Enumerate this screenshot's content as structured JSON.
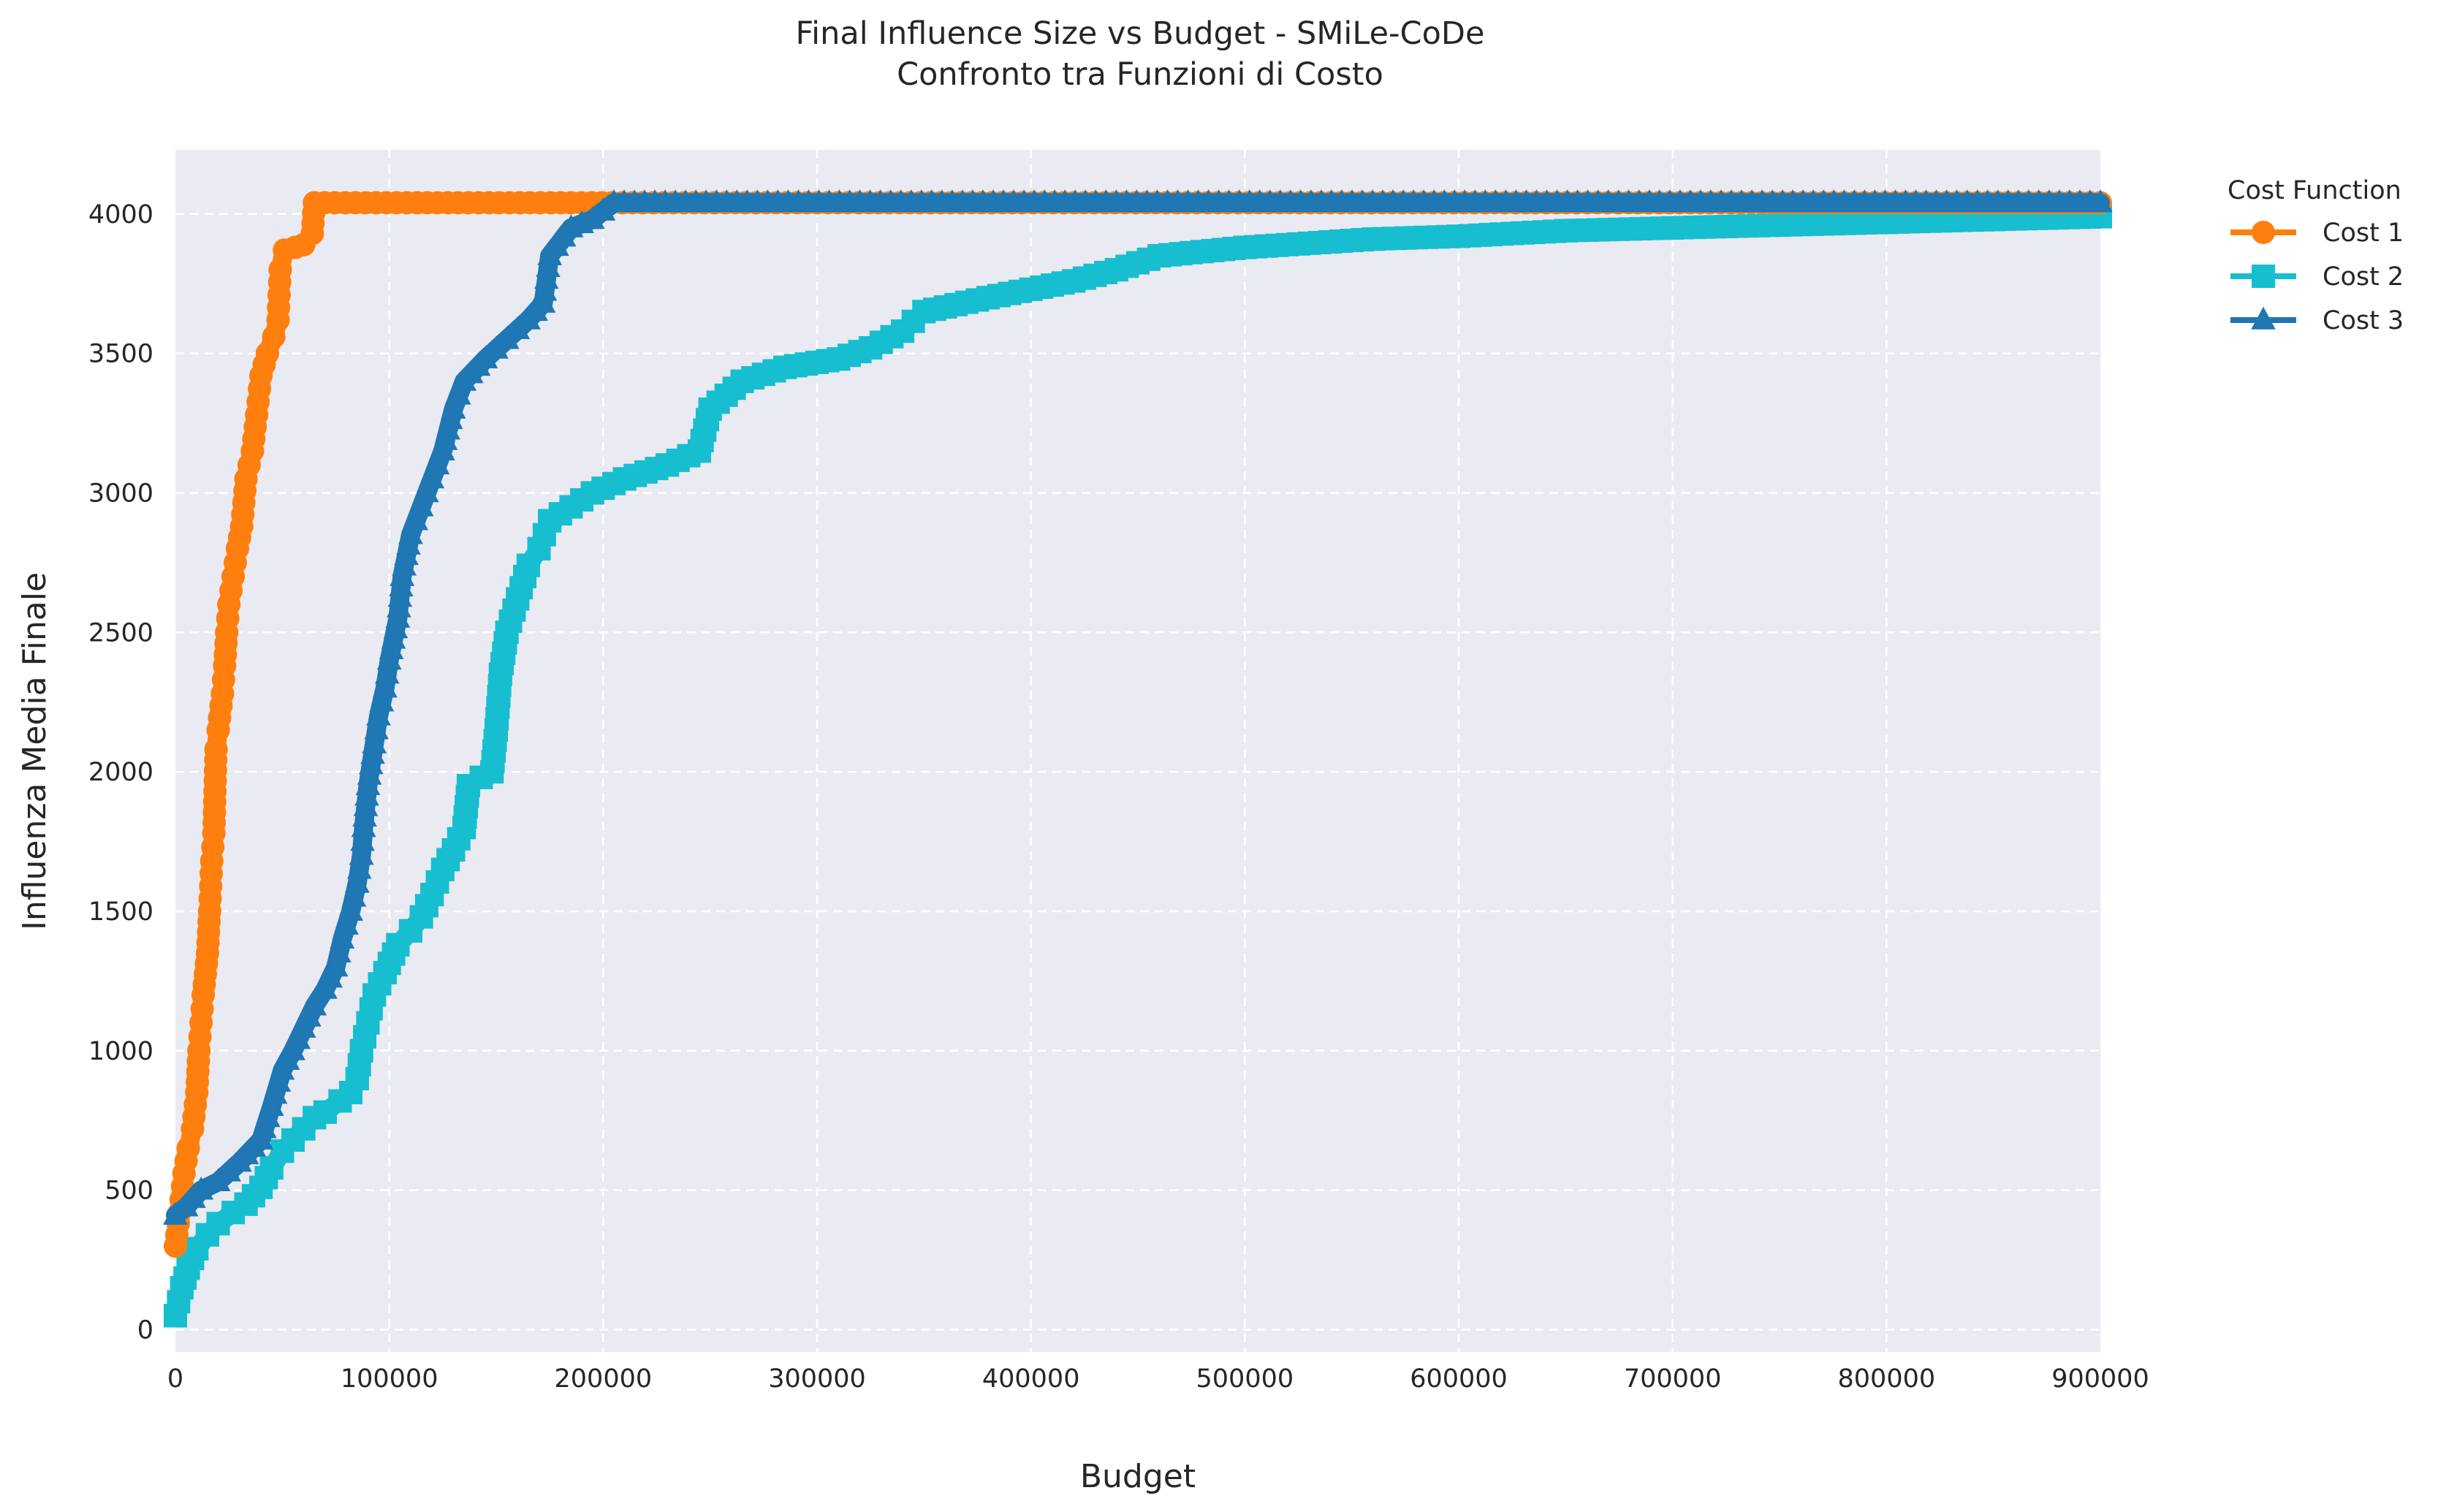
{
  "chart_data": {
    "type": "line",
    "title": "Final Influence Size vs Budget - SMiLe-CoDe",
    "subtitle": "Confronto tra Funzioni di Costo",
    "xlabel": "Budget",
    "ylabel": "Influenza Media Finale",
    "xlim": [
      0,
      900000
    ],
    "ylim": [
      -80,
      4230
    ],
    "x_ticks": [
      "0",
      "100000",
      "200000",
      "300000",
      "400000",
      "500000",
      "600000",
      "700000",
      "800000",
      "900000"
    ],
    "y_ticks": [
      "0",
      "500",
      "1000",
      "1500",
      "2000",
      "2500",
      "3000",
      "3500",
      "4000"
    ],
    "grid": true,
    "grid_style": "dashed",
    "background": "#eaeaf2",
    "legend": {
      "title": "Cost Function",
      "placement": "outside top-right"
    },
    "series": [
      {
        "name": "Cost 1",
        "color": "#ff7f0e",
        "marker": "circle",
        "points": [
          [
            0,
            300
          ],
          [
            2000,
            420
          ],
          [
            4000,
            560
          ],
          [
            6000,
            650
          ],
          [
            8000,
            720
          ],
          [
            10000,
            850
          ],
          [
            11000,
            1000
          ],
          [
            12000,
            1100
          ],
          [
            13000,
            1200
          ],
          [
            15000,
            1350
          ],
          [
            16000,
            1500
          ],
          [
            17000,
            1680
          ],
          [
            18000,
            1780
          ],
          [
            19000,
            2080
          ],
          [
            20000,
            2150
          ],
          [
            22000,
            2280
          ],
          [
            23000,
            2380
          ],
          [
            24000,
            2500
          ],
          [
            25000,
            2600
          ],
          [
            27000,
            2700
          ],
          [
            29000,
            2800
          ],
          [
            31000,
            2880
          ],
          [
            33000,
            3050
          ],
          [
            36000,
            3150
          ],
          [
            38000,
            3280
          ],
          [
            40000,
            3420
          ],
          [
            43000,
            3500
          ],
          [
            46000,
            3560
          ],
          [
            48000,
            3620
          ],
          [
            49000,
            3800
          ],
          [
            51000,
            3870
          ],
          [
            56000,
            3880
          ],
          [
            60000,
            3890
          ],
          [
            64000,
            3930
          ],
          [
            65000,
            4040
          ],
          [
            900000,
            4040
          ]
        ]
      },
      {
        "name": "Cost 2",
        "color": "#17becf",
        "marker": "square",
        "points": [
          [
            0,
            50
          ],
          [
            3000,
            150
          ],
          [
            6000,
            220
          ],
          [
            10000,
            290
          ],
          [
            15000,
            340
          ],
          [
            20000,
            380
          ],
          [
            27000,
            420
          ],
          [
            33000,
            450
          ],
          [
            40000,
            510
          ],
          [
            45000,
            580
          ],
          [
            50000,
            640
          ],
          [
            55000,
            680
          ],
          [
            60000,
            720
          ],
          [
            65000,
            760
          ],
          [
            70000,
            780
          ],
          [
            77000,
            820
          ],
          [
            82000,
            850
          ],
          [
            85000,
            900
          ],
          [
            87000,
            1000
          ],
          [
            90000,
            1100
          ],
          [
            93000,
            1200
          ],
          [
            98000,
            1280
          ],
          [
            104000,
            1380
          ],
          [
            110000,
            1430
          ],
          [
            115000,
            1480
          ],
          [
            120000,
            1560
          ],
          [
            125000,
            1650
          ],
          [
            130000,
            1720
          ],
          [
            135000,
            1800
          ],
          [
            137000,
            1950
          ],
          [
            143000,
            1980
          ],
          [
            148000,
            2000
          ],
          [
            150000,
            2150
          ],
          [
            152000,
            2350
          ],
          [
            155000,
            2500
          ],
          [
            160000,
            2620
          ],
          [
            165000,
            2740
          ],
          [
            170000,
            2800
          ],
          [
            175000,
            2900
          ],
          [
            185000,
            2950
          ],
          [
            195000,
            3000
          ],
          [
            210000,
            3050
          ],
          [
            230000,
            3100
          ],
          [
            245000,
            3150
          ],
          [
            250000,
            3300
          ],
          [
            265000,
            3400
          ],
          [
            285000,
            3450
          ],
          [
            310000,
            3480
          ],
          [
            325000,
            3520
          ],
          [
            340000,
            3580
          ],
          [
            350000,
            3650
          ],
          [
            380000,
            3700
          ],
          [
            400000,
            3730
          ],
          [
            420000,
            3760
          ],
          [
            440000,
            3800
          ],
          [
            460000,
            3850
          ],
          [
            500000,
            3880
          ],
          [
            540000,
            3900
          ],
          [
            560000,
            3910
          ],
          [
            600000,
            3920
          ],
          [
            650000,
            3940
          ],
          [
            700000,
            3950
          ],
          [
            750000,
            3960
          ],
          [
            800000,
            3970
          ],
          [
            850000,
            3980
          ],
          [
            900000,
            3990
          ]
        ]
      },
      {
        "name": "Cost 3",
        "color": "#1f77b4",
        "marker": "triangle",
        "points": [
          [
            0,
            410
          ],
          [
            5000,
            440
          ],
          [
            12000,
            500
          ],
          [
            20000,
            530
          ],
          [
            30000,
            600
          ],
          [
            40000,
            680
          ],
          [
            45000,
            800
          ],
          [
            50000,
            930
          ],
          [
            55000,
            1000
          ],
          [
            60000,
            1080
          ],
          [
            65000,
            1160
          ],
          [
            70000,
            1220
          ],
          [
            75000,
            1300
          ],
          [
            78000,
            1400
          ],
          [
            82000,
            1500
          ],
          [
            85000,
            1600
          ],
          [
            87000,
            1700
          ],
          [
            88000,
            1800
          ],
          [
            90000,
            1950
          ],
          [
            93000,
            2100
          ],
          [
            95000,
            2200
          ],
          [
            98000,
            2300
          ],
          [
            100000,
            2400
          ],
          [
            104000,
            2550
          ],
          [
            106000,
            2700
          ],
          [
            110000,
            2850
          ],
          [
            115000,
            2950
          ],
          [
            120000,
            3050
          ],
          [
            125000,
            3150
          ],
          [
            130000,
            3300
          ],
          [
            135000,
            3400
          ],
          [
            145000,
            3480
          ],
          [
            155000,
            3550
          ],
          [
            165000,
            3620
          ],
          [
            172000,
            3680
          ],
          [
            175000,
            3850
          ],
          [
            185000,
            3950
          ],
          [
            195000,
            3980
          ],
          [
            200000,
            4010
          ],
          [
            205000,
            4040
          ],
          [
            900000,
            4040
          ]
        ]
      }
    ]
  }
}
